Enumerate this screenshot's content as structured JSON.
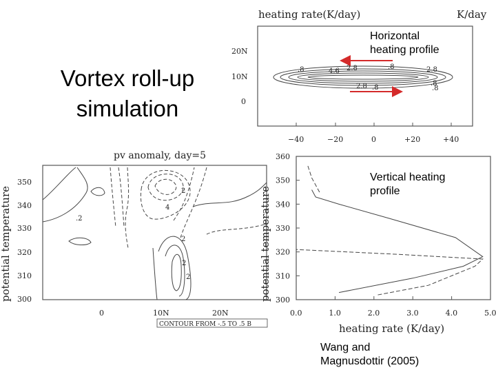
{
  "slide": {
    "title_line1": "Vortex roll-up",
    "title_line2": "simulation",
    "horizontal_label": [
      "Horizontal",
      "heating profile"
    ],
    "vertical_label": [
      "Vertical heating",
      "profile"
    ],
    "citation": [
      "Wang and",
      "Magnusdottir (2005)"
    ]
  },
  "panel_heating": {
    "title": "heating rate(K/day)",
    "unit": "K/day",
    "yticks": [
      "20N",
      "10N",
      "0"
    ],
    "xticks": [
      "−40",
      "−20",
      "0",
      "+20",
      "+40"
    ],
    "contour_labels": [
      ".8",
      "4.6",
      "2.8",
      ".8",
      "2.8",
      ".8",
      "2.8",
      ".8",
      ".8"
    ],
    "arrow_color": "#d42a2a"
  },
  "panel_pv": {
    "title": "pv anomaly, day=5",
    "ylabel": "potential temperature",
    "yticks": [
      "350",
      "340",
      "330",
      "320",
      "310",
      "300"
    ],
    "xticks": [
      "0",
      "10N",
      "20N"
    ],
    "contour_labels": [
      "2",
      "4",
      "2",
      ".2",
      "2",
      "2"
    ],
    "footer": "CONTOUR FROM -.5 TO .5 B"
  },
  "chart_data": {
    "type": "line",
    "title": "",
    "xlabel": "heating rate (K/day)",
    "ylabel": "potential temperature",
    "xlim": [
      0,
      5
    ],
    "ylim": [
      300,
      360
    ],
    "xticks": [
      "0.0",
      "1.0",
      "2.0",
      "3.0",
      "4.0",
      "5.0"
    ],
    "yticks": [
      "360",
      "350",
      "340",
      "330",
      "320",
      "310",
      "300"
    ],
    "series": [
      {
        "style": "solid",
        "points": [
          [
            1.1,
            303
          ],
          [
            3.0,
            309
          ],
          [
            4.3,
            314
          ],
          [
            4.8,
            318
          ],
          [
            4.1,
            326
          ],
          [
            2.4,
            334
          ],
          [
            1.1,
            340
          ],
          [
            0.5,
            343
          ],
          [
            0.4,
            346
          ]
        ]
      },
      {
        "style": "dashed",
        "points": [
          [
            2.1,
            302
          ],
          [
            3.4,
            306
          ],
          [
            4.6,
            314
          ],
          [
            4.8,
            317
          ],
          [
            2.6,
            319
          ],
          [
            0.0,
            321
          ]
        ]
      },
      {
        "style": "dashed",
        "points": [
          [
            0.6,
            345
          ],
          [
            0.4,
            351
          ],
          [
            0.3,
            356
          ]
        ]
      }
    ]
  }
}
